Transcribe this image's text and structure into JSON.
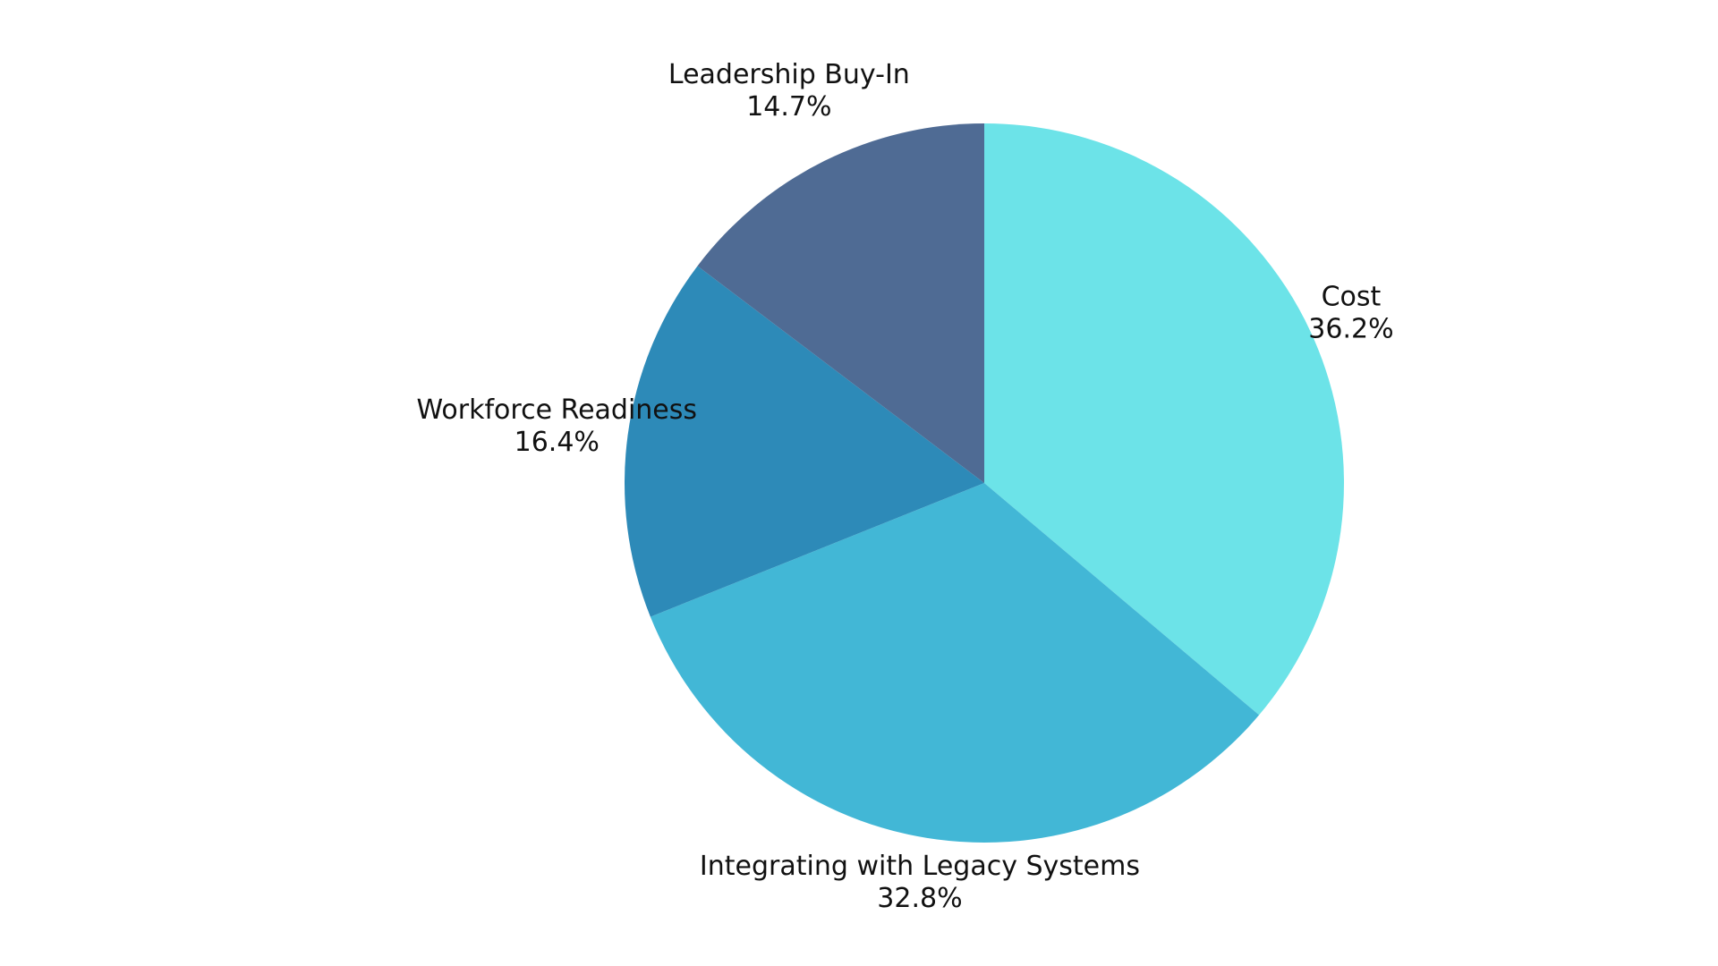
{
  "chart_data": {
    "type": "pie",
    "title": "",
    "start_angle_deg": 0,
    "direction": "clockwise",
    "slices": [
      {
        "label": "Cost",
        "value": 36.2,
        "value_label": "36.2%",
        "color": "#6ce3e8"
      },
      {
        "label": "Integrating with Legacy Systems",
        "value": 32.8,
        "value_label": "32.8%",
        "color": "#42b7d6"
      },
      {
        "label": "Workforce Readiness",
        "value": 16.4,
        "value_label": "16.4%",
        "color": "#2d8ab8"
      },
      {
        "label": "Leadership Buy-In",
        "value": 14.7,
        "value_label": "14.7%",
        "color": "#4f6b94"
      }
    ],
    "legend": "none"
  }
}
